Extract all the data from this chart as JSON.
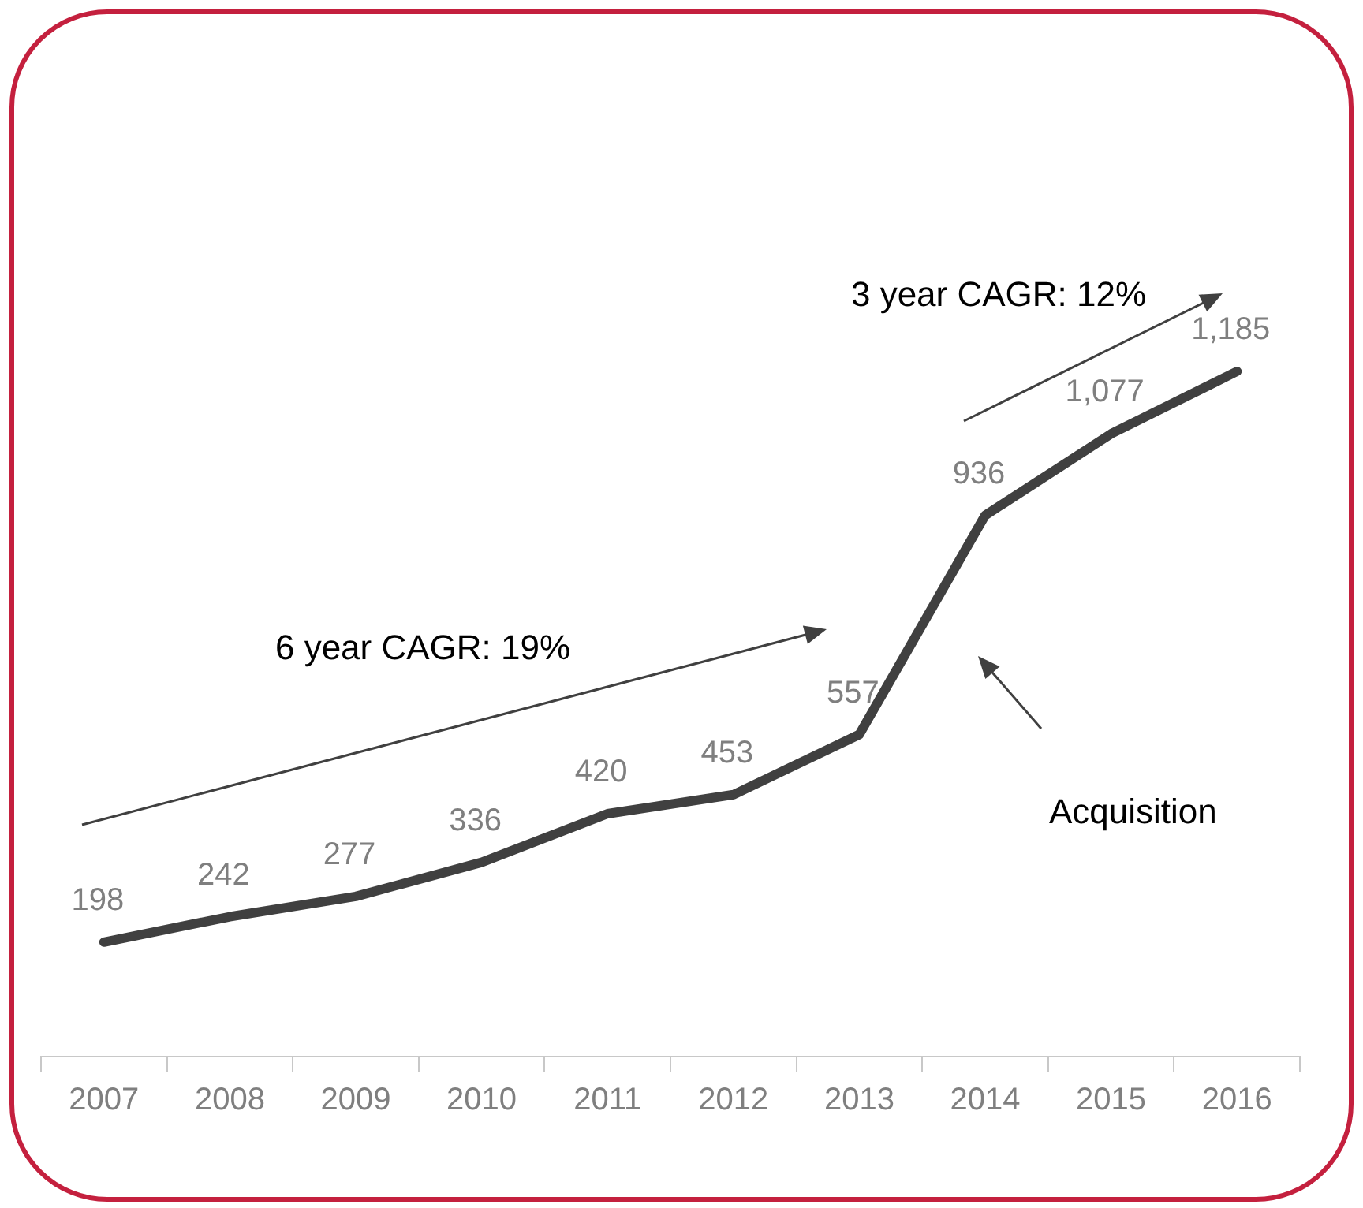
{
  "chart_data": {
    "type": "line",
    "categories": [
      "2007",
      "2008",
      "2009",
      "2010",
      "2011",
      "2012",
      "2013",
      "2014",
      "2015",
      "2016"
    ],
    "series": [
      {
        "color": "#404040",
        "values": [
          198,
          242,
          277,
          336,
          420,
          453,
          557,
          936,
          1077,
          1185
        ],
        "value_labels": [
          "198",
          "242",
          "277",
          "336",
          "420",
          "453",
          "557",
          "936",
          "1,077",
          "1,185"
        ]
      }
    ],
    "annotations": [
      "6 year CAGR: 19%",
      "3 year CAGR: 12%",
      "Acquisition"
    ],
    "grid": false,
    "legend": false,
    "marker": "none",
    "line_style": "solid"
  }
}
